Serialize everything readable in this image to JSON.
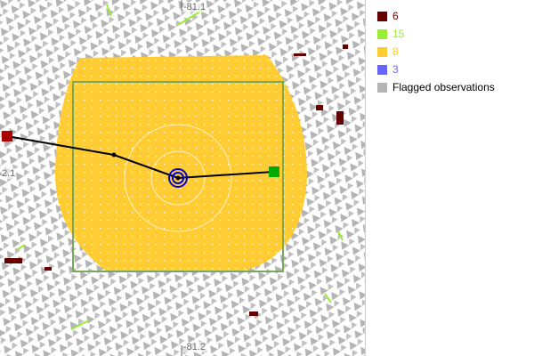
{
  "map": {
    "axis_labels": {
      "top": "-81.1",
      "bottom": "-81.2",
      "left": "2.1"
    },
    "colors": {
      "flagged": "#b4b4b4",
      "cluster8": "#ffcc33",
      "box": "#7aa85a",
      "marker_start": "#aa0000",
      "marker_end": "#00aa00",
      "target": "#0000dd"
    }
  },
  "legend": {
    "items": [
      {
        "label": "6",
        "color": "#660000"
      },
      {
        "label": "15",
        "color": "#99ee33"
      },
      {
        "label": "8",
        "color": "#ffcc33"
      },
      {
        "label": "3",
        "color": "#6666ff"
      },
      {
        "label": "Flagged observations",
        "color": "#b4b4b4",
        "text_color": "#000000"
      }
    ]
  }
}
